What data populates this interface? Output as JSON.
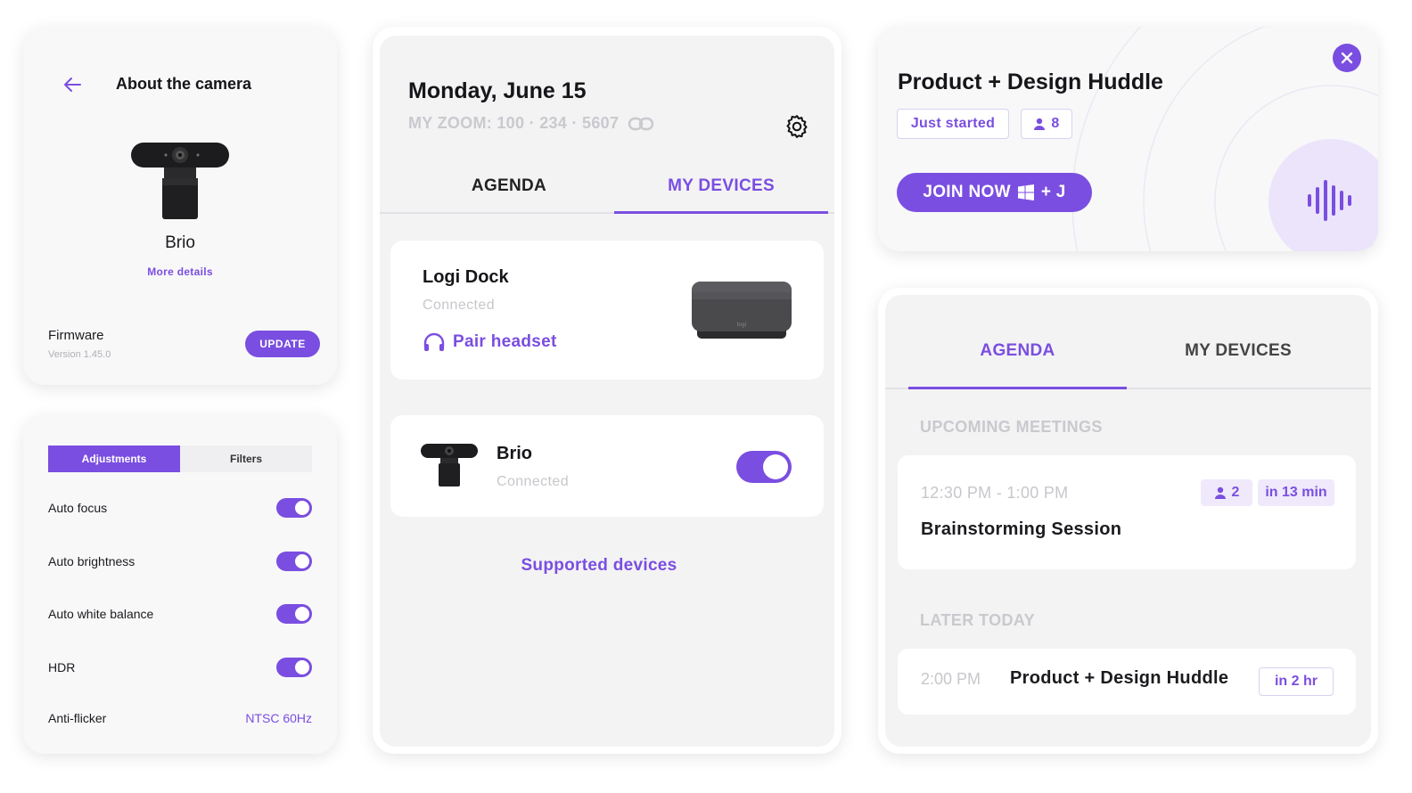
{
  "about_camera": {
    "title": "About the camera",
    "device_name": "Brio",
    "more_details": "More details",
    "firmware_label": "Firmware",
    "firmware_version": "Version 1.45.0",
    "update_label": "UPDATE"
  },
  "adjustments": {
    "tabs": [
      {
        "label": "Adjustments",
        "active": true
      },
      {
        "label": "Filters",
        "active": false
      }
    ],
    "settings": [
      {
        "label": "Auto focus",
        "enabled": true
      },
      {
        "label": "Auto brightness",
        "enabled": true
      },
      {
        "label": "Auto white balance",
        "enabled": true
      },
      {
        "label": "HDR",
        "enabled": true
      }
    ],
    "anti_flicker_label": "Anti-flicker",
    "anti_flicker_value": "NTSC 60Hz"
  },
  "devices_panel": {
    "date": "Monday, June 15",
    "my_zoom": "MY ZOOM: 100 · 234 · 5607",
    "tabs": [
      {
        "label": "AGENDA",
        "active": false
      },
      {
        "label": "MY DEVICES",
        "active": true
      }
    ],
    "devices": [
      {
        "name": "Logi Dock",
        "status": "Connected",
        "action": "Pair headset"
      },
      {
        "name": "Brio",
        "status": "Connected",
        "enabled": true
      }
    ],
    "supported_devices": "Supported devices"
  },
  "huddle": {
    "title": "Product + Design Huddle",
    "status_chip": "Just started",
    "participants": "8",
    "join_label": "JOIN NOW",
    "join_shortcut": "+ J"
  },
  "agenda_panel": {
    "tabs": [
      {
        "label": "AGENDA",
        "active": true
      },
      {
        "label": "MY DEVICES",
        "active": false
      }
    ],
    "upcoming_header": "UPCOMING MEETINGS",
    "upcoming": {
      "time": "12:30 PM - 1:00 PM",
      "name": "Brainstorming Session",
      "participants": "2",
      "relative": "in 13 min"
    },
    "later_header": "LATER TODAY",
    "later": {
      "time": "2:00 PM",
      "name": "Product + Design Huddle",
      "relative": "in 2 hr"
    }
  },
  "colors": {
    "accent": "#7a4ee0",
    "card_bg": "#f8f8f9",
    "muted_text": "#c7c7cc"
  }
}
